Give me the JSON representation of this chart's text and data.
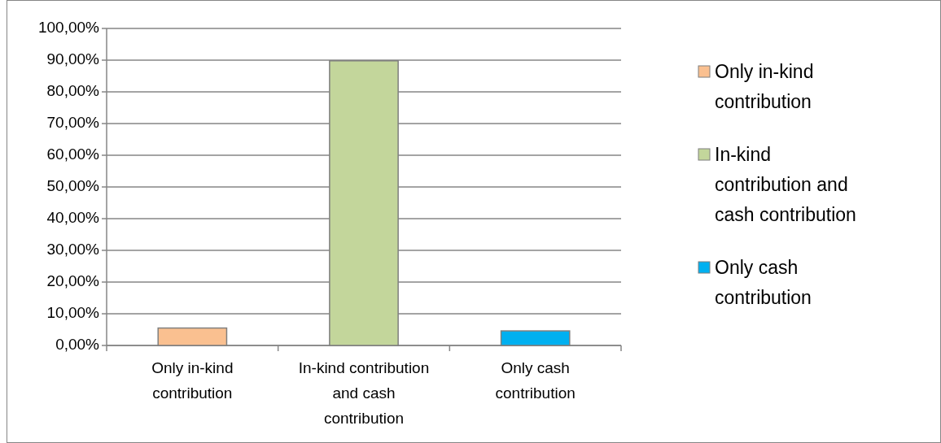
{
  "chart_data": {
    "type": "bar",
    "categories": [
      "Only in-kind contribution",
      "In-kind contribution and cash contribution",
      "Only cash contribution"
    ],
    "series": [
      {
        "name": "Only in-kind contribution",
        "color": "#fac090",
        "values": [
          5.5,
          null,
          null
        ]
      },
      {
        "name": "In-kind contribution and cash contribution",
        "color": "#c3d69b",
        "values": [
          null,
          89.8,
          null
        ]
      },
      {
        "name": "Only cash contribution",
        "color": "#00b0f0",
        "values": [
          null,
          null,
          4.6
        ]
      }
    ],
    "stacked": true,
    "ylim": [
      0,
      100
    ],
    "yticks": [
      {
        "value": 0,
        "label": "0,00%"
      },
      {
        "value": 10,
        "label": "10,00%"
      },
      {
        "value": 20,
        "label": "20,00%"
      },
      {
        "value": 30,
        "label": "30,00%"
      },
      {
        "value": 40,
        "label": "40,00%"
      },
      {
        "value": 50,
        "label": "50,00%"
      },
      {
        "value": 60,
        "label": "60,00%"
      },
      {
        "value": 70,
        "label": "70,00%"
      },
      {
        "value": 80,
        "label": "80,00%"
      },
      {
        "value": 90,
        "label": "90,00%"
      },
      {
        "value": 100,
        "label": "100,00%"
      }
    ],
    "grid": "y",
    "legend": "right"
  }
}
